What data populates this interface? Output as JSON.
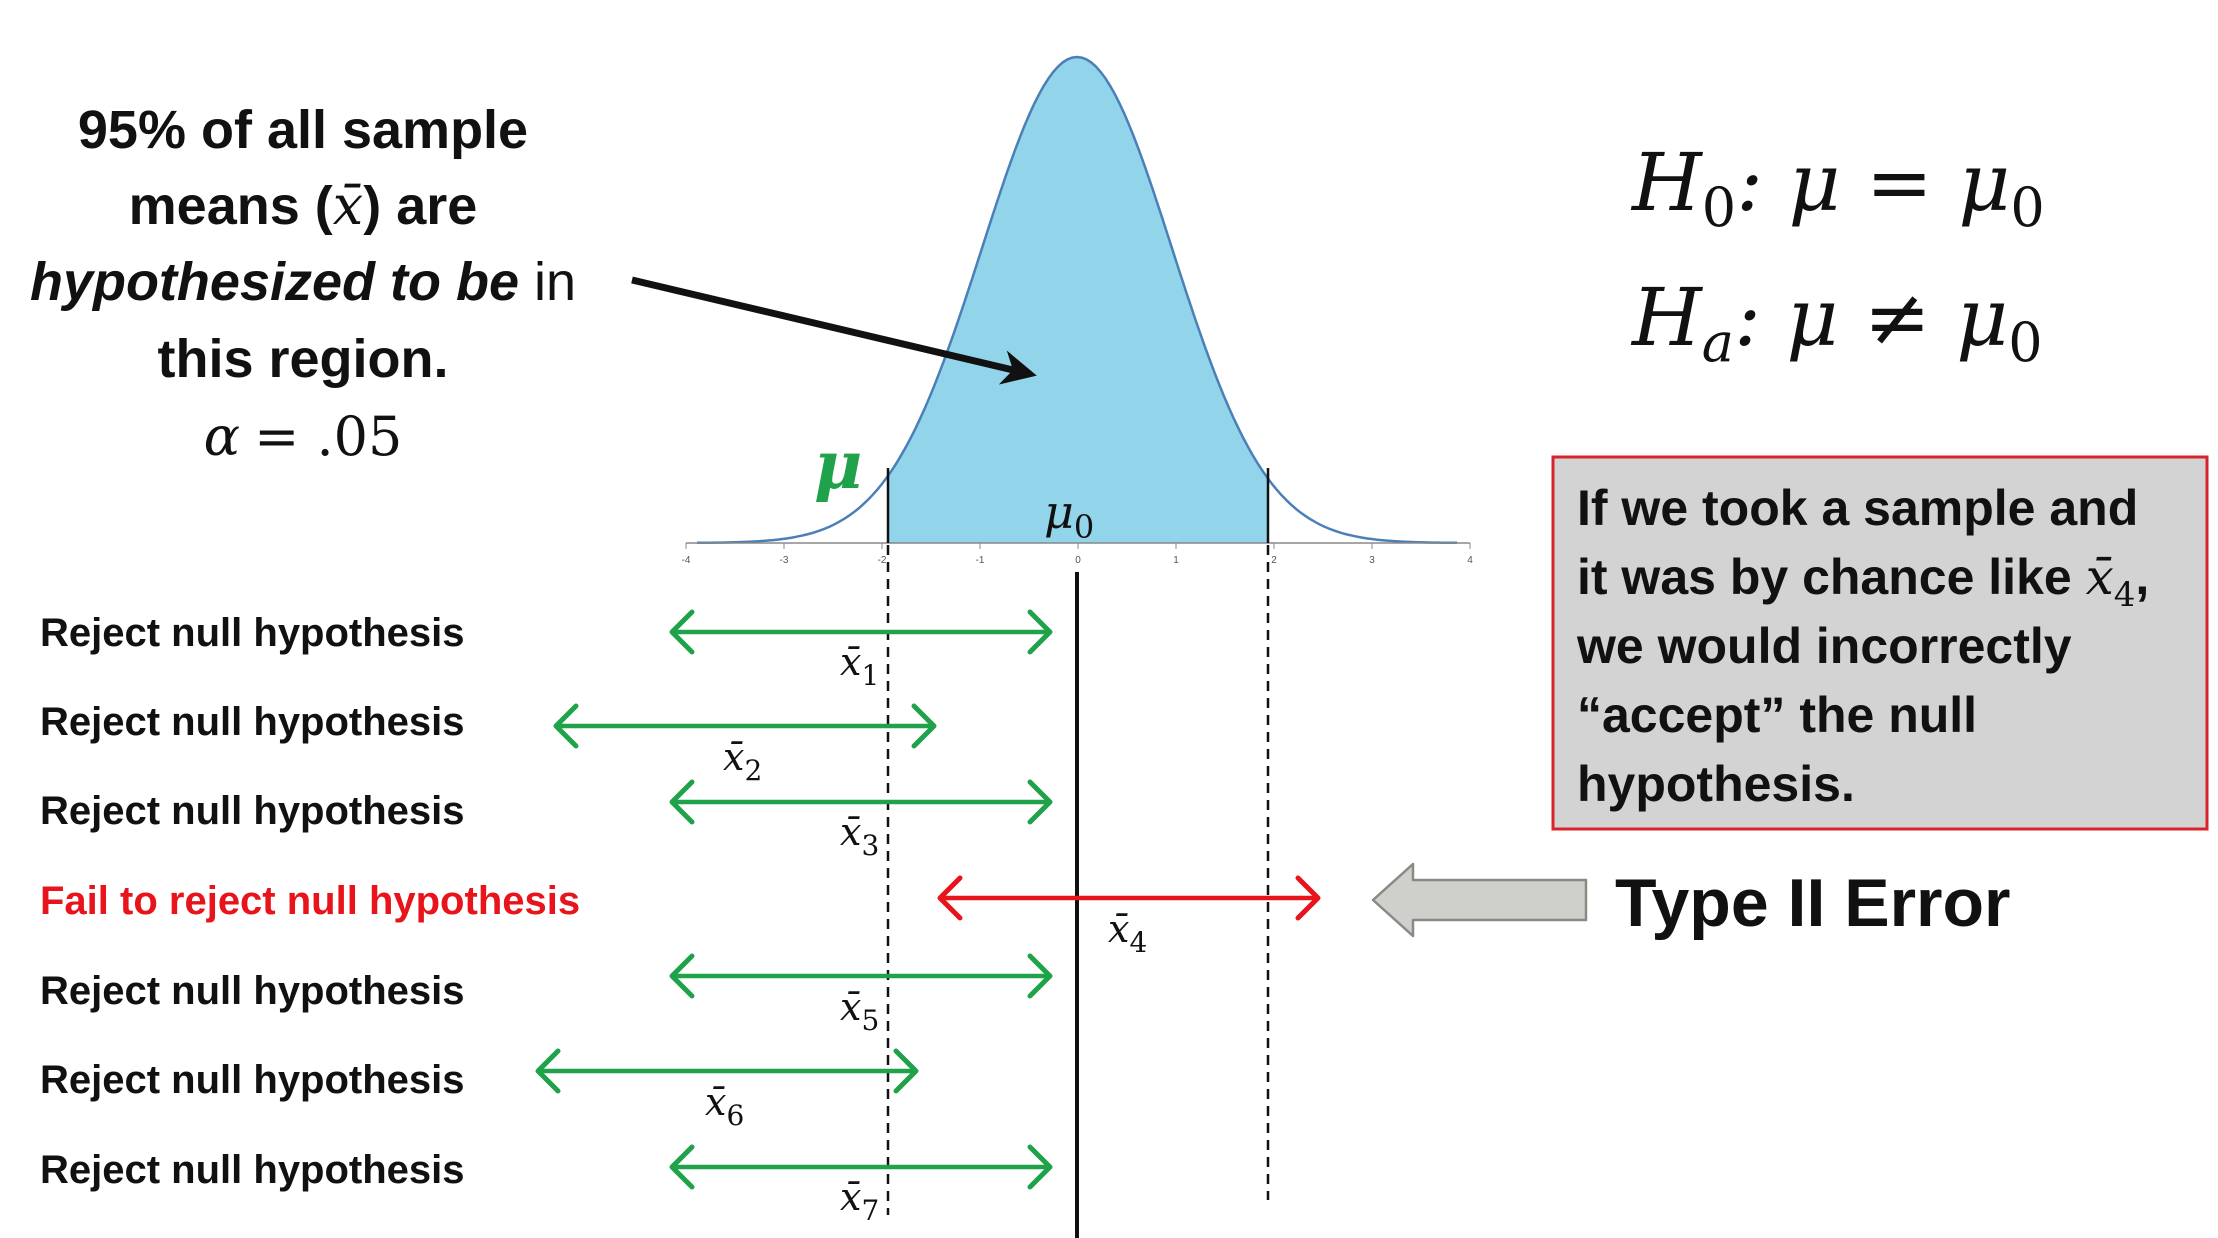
{
  "left_text": {
    "line1": "95% of all sample",
    "line2_pre": "means (",
    "line2_sym": "x̄",
    "line2_post": ") are",
    "line3_italic": "hypothesized to be",
    "line3_post": " in",
    "line4": "this region.",
    "alpha_sym": "α",
    "alpha_eq": "= .05"
  },
  "hypotheses": {
    "h0_letter": "H",
    "h0_sub": "0",
    "h0_rest": ": μ = μ",
    "h0_rest_sub": "0",
    "ha_letter": "H",
    "ha_sub": "a",
    "ha_rest": ": μ ≠ μ",
    "ha_rest_sub": "0"
  },
  "curve_labels": {
    "mu": "μ",
    "mu0": "μ",
    "mu0_sub": "0"
  },
  "axis_ticks": [
    "-4",
    "-3",
    "-2",
    "-1",
    "0",
    "1",
    "2",
    "3",
    "4"
  ],
  "callout": {
    "line1": "If we took a sample and",
    "line2_pre": "it was by chance like ",
    "line2_sym": "x̄",
    "line2_sub": "4",
    "line2_post": ",",
    "line3_pre": "we would ",
    "line3_bold": "incorrectly",
    "line4": "“accept” the null",
    "line5": "hypothesis."
  },
  "type2_label": "Type II Error",
  "rows": [
    {
      "label": "Reject null hypothesis",
      "sym": "x̄",
      "sub": "1",
      "fail": false
    },
    {
      "label": "Reject null hypothesis",
      "sym": "x̄",
      "sub": "2",
      "fail": false
    },
    {
      "label": "Reject null hypothesis",
      "sym": "x̄",
      "sub": "3",
      "fail": false
    },
    {
      "label": "Fail to reject null hypothesis",
      "sym": "x̄",
      "sub": "4",
      "fail": true
    },
    {
      "label": "Reject null hypothesis",
      "sym": "x̄",
      "sub": "5",
      "fail": false
    },
    {
      "label": "Reject null hypothesis",
      "sym": "x̄",
      "sub": "6",
      "fail": false
    },
    {
      "label": "Reject null hypothesis",
      "sym": "x̄",
      "sub": "7",
      "fail": false
    }
  ],
  "colors": {
    "curve_fill": "#92d4ea",
    "curve_stroke": "#4a7fb8",
    "green_arrow": "#1fa24a",
    "red_arrow": "#e8141c",
    "mu_green": "#1fa24a",
    "callout_bg": "#d3d3d3",
    "callout_border": "#d9232a",
    "block_arrow_fill": "#cfcfcb",
    "block_arrow_stroke": "#8a8a84"
  }
}
